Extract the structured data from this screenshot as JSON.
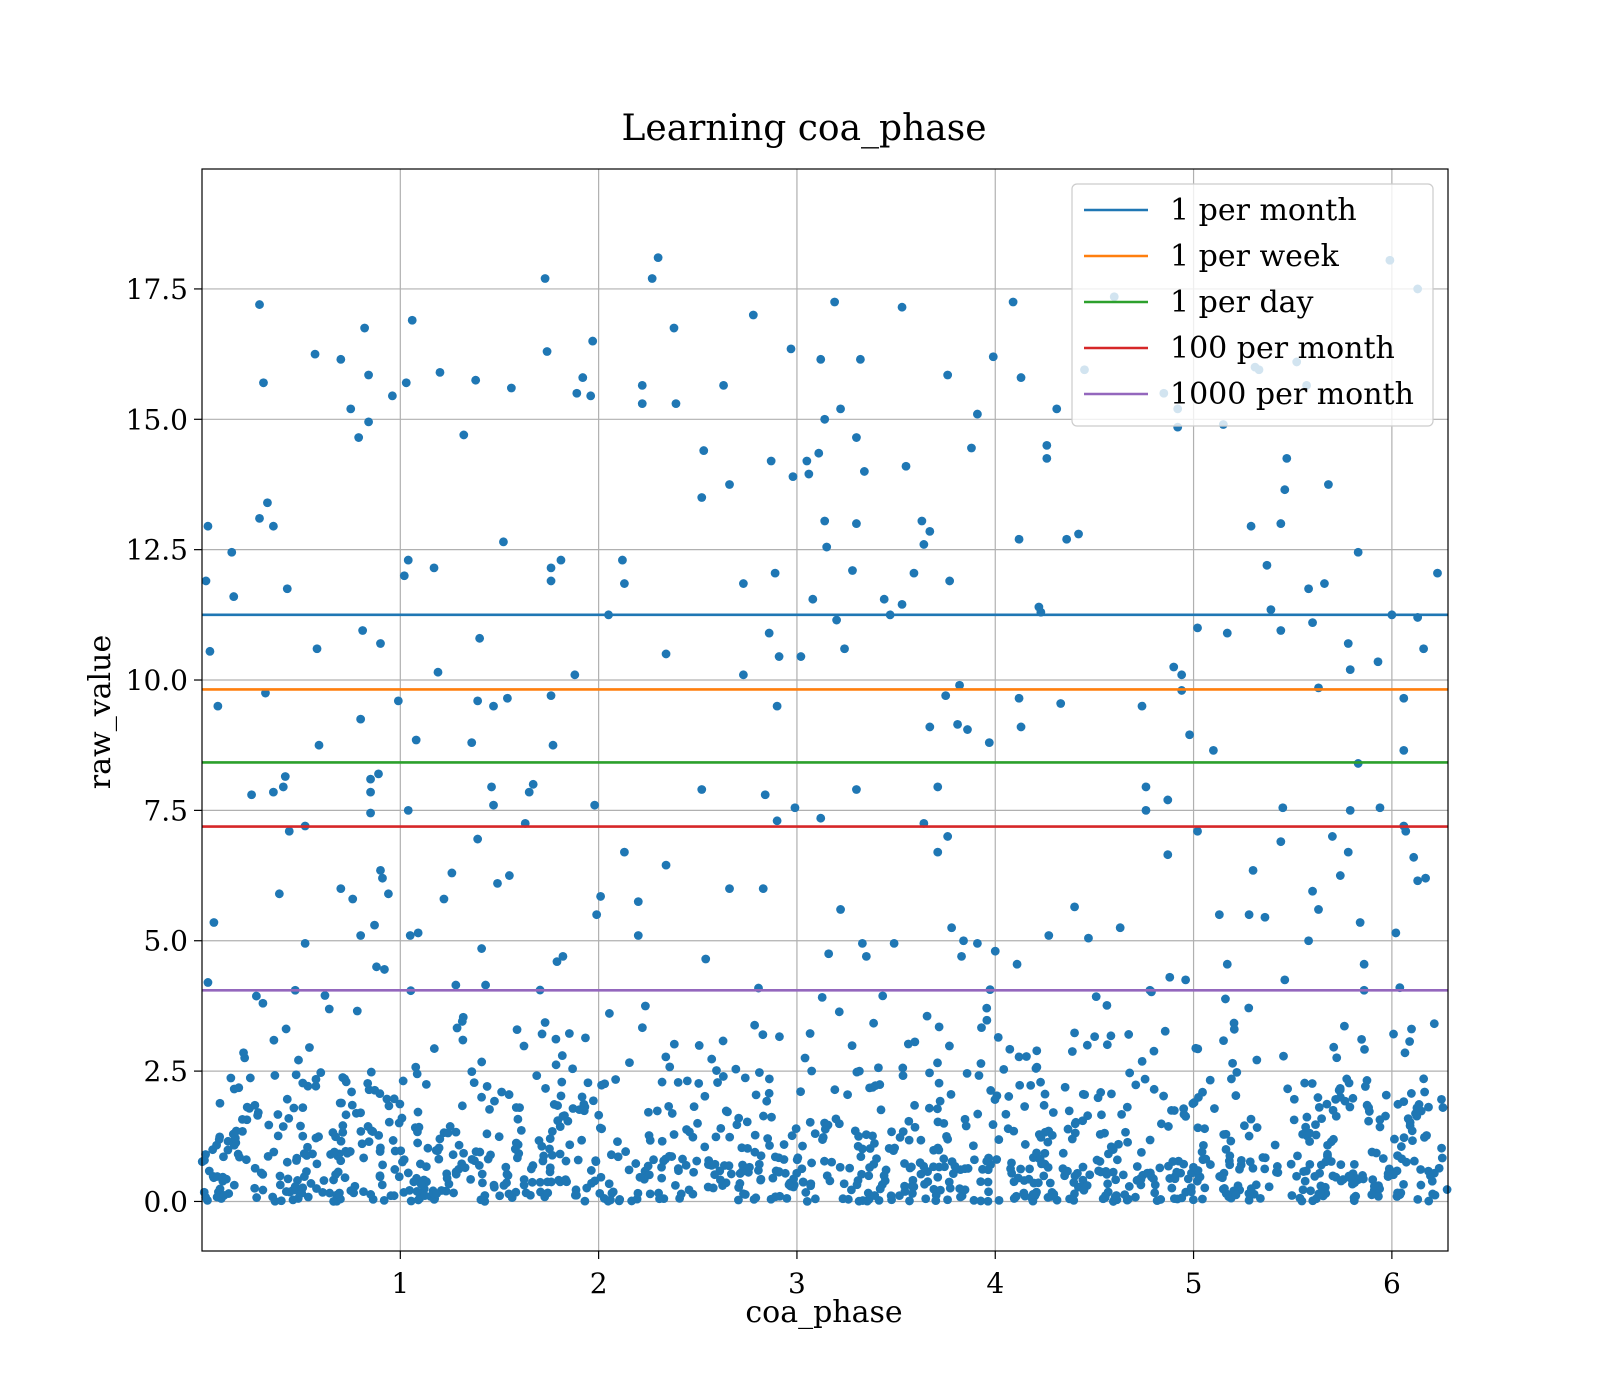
{
  "chart_data": {
    "type": "scatter",
    "title": "Learning coa_phase",
    "xlabel": "coa_phase",
    "ylabel": "raw_value",
    "xlim": [
      0,
      6.283
    ],
    "ylim": [
      -0.95,
      19.8
    ],
    "xticks": [
      1,
      2,
      3,
      4,
      5,
      6
    ],
    "yticks": [
      0.0,
      2.5,
      5.0,
      7.5,
      10.0,
      12.5,
      15.0,
      17.5
    ],
    "ytick_labels": [
      "0.0",
      "2.5",
      "5.0",
      "7.5",
      "10.0",
      "12.5",
      "15.0",
      "17.5"
    ],
    "grid": true,
    "legend_position": "top-right",
    "point_color": "#1f77b4",
    "hlines": [
      {
        "name": "1 per month",
        "y": 11.25,
        "color": "#1f77b4"
      },
      {
        "name": "1 per week",
        "y": 9.82,
        "color": "#ff7f0e"
      },
      {
        "name": "1 per day",
        "y": 8.42,
        "color": "#2ca02c"
      },
      {
        "name": "100 per month",
        "y": 7.19,
        "color": "#d62728"
      },
      {
        "name": "1000 per month",
        "y": 4.05,
        "color": "#9467bd"
      }
    ],
    "points": [
      [
        0.02,
        11.9
      ],
      [
        0.03,
        12.95
      ],
      [
        0.04,
        10.55
      ],
      [
        0.03,
        4.2
      ],
      [
        0.06,
        5.35
      ],
      [
        0.08,
        9.5
      ],
      [
        0.15,
        12.45
      ],
      [
        0.16,
        11.6
      ],
      [
        0.25,
        7.8
      ],
      [
        0.29,
        13.1
      ],
      [
        0.29,
        17.2
      ],
      [
        0.31,
        15.7
      ],
      [
        0.32,
        9.75
      ],
      [
        0.33,
        13.4
      ],
      [
        0.36,
        12.95
      ],
      [
        0.36,
        7.85
      ],
      [
        0.39,
        5.9
      ],
      [
        0.41,
        7.95
      ],
      [
        0.42,
        8.15
      ],
      [
        0.43,
        11.75
      ],
      [
        0.44,
        7.1
      ],
      [
        0.47,
        4.05
      ],
      [
        0.52,
        7.2
      ],
      [
        0.52,
        4.95
      ],
      [
        0.57,
        16.25
      ],
      [
        0.58,
        10.6
      ],
      [
        0.59,
        8.75
      ],
      [
        0.62,
        3.95
      ],
      [
        0.7,
        16.15
      ],
      [
        0.7,
        6.0
      ],
      [
        0.75,
        15.2
      ],
      [
        0.76,
        5.8
      ],
      [
        0.79,
        14.65
      ],
      [
        0.8,
        9.25
      ],
      [
        0.8,
        5.1
      ],
      [
        0.81,
        10.95
      ],
      [
        0.82,
        16.75
      ],
      [
        0.84,
        15.85
      ],
      [
        0.84,
        14.95
      ],
      [
        0.85,
        8.1
      ],
      [
        0.85,
        7.85
      ],
      [
        0.85,
        7.45
      ],
      [
        0.87,
        5.3
      ],
      [
        0.88,
        4.5
      ],
      [
        0.89,
        8.2
      ],
      [
        0.9,
        10.7
      ],
      [
        0.9,
        6.35
      ],
      [
        0.91,
        6.2
      ],
      [
        0.92,
        4.45
      ],
      [
        0.94,
        5.9
      ],
      [
        0.96,
        15.45
      ],
      [
        0.99,
        9.6
      ],
      [
        1.02,
        12.0
      ],
      [
        1.03,
        15.7
      ],
      [
        1.04,
        12.3
      ],
      [
        1.04,
        7.5
      ],
      [
        1.05,
        5.1
      ],
      [
        1.06,
        16.9
      ],
      [
        1.08,
        8.85
      ],
      [
        1.09,
        5.15
      ],
      [
        1.17,
        12.15
      ],
      [
        1.19,
        10.15
      ],
      [
        1.2,
        15.9
      ],
      [
        1.22,
        5.8
      ],
      [
        1.26,
        6.3
      ],
      [
        1.28,
        4.15
      ],
      [
        1.32,
        14.7
      ],
      [
        1.36,
        8.8
      ],
      [
        1.38,
        15.75
      ],
      [
        1.39,
        9.6
      ],
      [
        1.39,
        6.95
      ],
      [
        1.4,
        10.8
      ],
      [
        1.41,
        4.85
      ],
      [
        1.43,
        4.15
      ],
      [
        1.46,
        7.95
      ],
      [
        1.47,
        9.5
      ],
      [
        1.47,
        7.6
      ],
      [
        1.49,
        6.1
      ],
      [
        1.52,
        12.65
      ],
      [
        1.54,
        9.65
      ],
      [
        1.55,
        6.25
      ],
      [
        1.56,
        15.6
      ],
      [
        1.63,
        7.25
      ],
      [
        1.65,
        7.85
      ],
      [
        1.67,
        8.0
      ],
      [
        1.73,
        17.7
      ],
      [
        1.74,
        16.3
      ],
      [
        1.76,
        12.15
      ],
      [
        1.76,
        11.9
      ],
      [
        1.76,
        9.7
      ],
      [
        1.77,
        8.75
      ],
      [
        1.79,
        4.6
      ],
      [
        1.81,
        12.3
      ],
      [
        1.82,
        4.7
      ],
      [
        1.88,
        10.1
      ],
      [
        1.89,
        15.5
      ],
      [
        1.92,
        15.8
      ],
      [
        1.96,
        15.45
      ],
      [
        1.97,
        16.5
      ],
      [
        1.98,
        7.6
      ],
      [
        1.99,
        5.5
      ],
      [
        2.01,
        5.85
      ],
      [
        2.05,
        11.25
      ],
      [
        2.12,
        12.3
      ],
      [
        2.13,
        11.85
      ],
      [
        2.13,
        6.7
      ],
      [
        2.2,
        5.75
      ],
      [
        2.2,
        5.1
      ],
      [
        2.22,
        15.65
      ],
      [
        2.22,
        15.3
      ],
      [
        2.27,
        17.7
      ],
      [
        2.3,
        18.1
      ],
      [
        2.34,
        6.45
      ],
      [
        2.34,
        10.5
      ],
      [
        2.38,
        16.75
      ],
      [
        2.39,
        15.3
      ],
      [
        2.52,
        13.5
      ],
      [
        2.53,
        14.4
      ],
      [
        2.52,
        7.9
      ],
      [
        2.54,
        4.65
      ],
      [
        2.63,
        15.65
      ],
      [
        2.66,
        13.75
      ],
      [
        2.66,
        6.0
      ],
      [
        2.73,
        10.1
      ],
      [
        2.73,
        11.85
      ],
      [
        2.78,
        17.0
      ],
      [
        2.83,
        6.0
      ],
      [
        2.84,
        7.8
      ],
      [
        2.86,
        10.9
      ],
      [
        2.87,
        14.2
      ],
      [
        2.89,
        12.05
      ],
      [
        2.9,
        9.5
      ],
      [
        2.9,
        7.3
      ],
      [
        2.91,
        10.45
      ],
      [
        2.97,
        16.35
      ],
      [
        2.98,
        13.9
      ],
      [
        2.99,
        7.55
      ],
      [
        3.02,
        10.45
      ],
      [
        3.05,
        14.2
      ],
      [
        3.06,
        13.95
      ],
      [
        3.08,
        11.55
      ],
      [
        3.11,
        14.35
      ],
      [
        3.12,
        16.15
      ],
      [
        3.12,
        7.35
      ],
      [
        3.14,
        13.05
      ],
      [
        3.14,
        15.0
      ],
      [
        3.15,
        12.55
      ],
      [
        3.16,
        4.75
      ],
      [
        3.19,
        17.25
      ],
      [
        3.2,
        11.15
      ],
      [
        3.22,
        15.2
      ],
      [
        3.24,
        10.6
      ],
      [
        3.22,
        5.6
      ],
      [
        3.28,
        12.1
      ],
      [
        3.3,
        14.65
      ],
      [
        3.3,
        13.0
      ],
      [
        3.3,
        7.9
      ],
      [
        3.32,
        16.15
      ],
      [
        3.34,
        14.0
      ],
      [
        3.33,
        4.95
      ],
      [
        3.35,
        4.7
      ],
      [
        3.44,
        11.55
      ],
      [
        3.47,
        11.25
      ],
      [
        3.49,
        4.95
      ],
      [
        3.53,
        11.45
      ],
      [
        3.53,
        17.15
      ],
      [
        3.55,
        14.1
      ],
      [
        3.59,
        12.05
      ],
      [
        3.63,
        13.05
      ],
      [
        3.64,
        12.6
      ],
      [
        3.64,
        7.25
      ],
      [
        3.67,
        12.85
      ],
      [
        3.67,
        9.1
      ],
      [
        3.71,
        7.95
      ],
      [
        3.71,
        6.7
      ],
      [
        3.75,
        9.7
      ],
      [
        3.76,
        15.85
      ],
      [
        3.77,
        11.9
      ],
      [
        3.76,
        7.0
      ],
      [
        3.78,
        5.25
      ],
      [
        3.81,
        9.15
      ],
      [
        3.82,
        9.9
      ],
      [
        3.83,
        4.7
      ],
      [
        3.84,
        5.0
      ],
      [
        3.86,
        9.05
      ],
      [
        3.88,
        14.45
      ],
      [
        3.91,
        15.1
      ],
      [
        3.91,
        4.95
      ],
      [
        3.97,
        8.8
      ],
      [
        3.99,
        16.2
      ],
      [
        4.0,
        4.8
      ],
      [
        4.09,
        17.25
      ],
      [
        4.11,
        4.55
      ],
      [
        4.12,
        12.7
      ],
      [
        4.13,
        15.8
      ],
      [
        4.12,
        9.65
      ],
      [
        4.13,
        9.1
      ],
      [
        4.22,
        11.4
      ],
      [
        4.23,
        11.3
      ],
      [
        4.26,
        14.5
      ],
      [
        4.26,
        14.25
      ],
      [
        4.27,
        5.1
      ],
      [
        4.31,
        15.2
      ],
      [
        4.33,
        9.55
      ],
      [
        4.36,
        12.7
      ],
      [
        4.42,
        12.8
      ],
      [
        4.4,
        5.65
      ],
      [
        4.45,
        15.95
      ],
      [
        4.47,
        5.05
      ],
      [
        4.6,
        17.35
      ],
      [
        4.63,
        5.25
      ],
      [
        4.74,
        9.5
      ],
      [
        4.76,
        7.95
      ],
      [
        4.76,
        7.5
      ],
      [
        4.78,
        4.05
      ],
      [
        4.85,
        15.5
      ],
      [
        4.87,
        7.7
      ],
      [
        4.87,
        6.65
      ],
      [
        4.88,
        4.3
      ],
      [
        4.9,
        10.25
      ],
      [
        4.92,
        15.2
      ],
      [
        4.92,
        14.85
      ],
      [
        4.94,
        10.1
      ],
      [
        4.94,
        9.8
      ],
      [
        4.96,
        4.25
      ],
      [
        4.98,
        8.95
      ],
      [
        5.02,
        11.0
      ],
      [
        5.02,
        7.1
      ],
      [
        5.1,
        8.65
      ],
      [
        5.13,
        5.5
      ],
      [
        5.15,
        14.9
      ],
      [
        5.17,
        10.9
      ],
      [
        5.17,
        4.55
      ],
      [
        5.28,
        5.5
      ],
      [
        5.29,
        12.95
      ],
      [
        5.3,
        6.35
      ],
      [
        5.31,
        16.0
      ],
      [
        5.33,
        15.95
      ],
      [
        5.36,
        5.45
      ],
      [
        5.37,
        12.2
      ],
      [
        5.39,
        11.35
      ],
      [
        5.44,
        13.0
      ],
      [
        5.44,
        10.95
      ],
      [
        5.44,
        6.9
      ],
      [
        5.45,
        7.55
      ],
      [
        5.46,
        13.65
      ],
      [
        5.47,
        14.25
      ],
      [
        5.46,
        4.25
      ],
      [
        5.52,
        16.1
      ],
      [
        5.57,
        15.65
      ],
      [
        5.58,
        11.75
      ],
      [
        5.58,
        5.0
      ],
      [
        5.6,
        11.1
      ],
      [
        5.6,
        5.95
      ],
      [
        5.63,
        9.85
      ],
      [
        5.63,
        5.6
      ],
      [
        5.66,
        11.85
      ],
      [
        5.68,
        13.75
      ],
      [
        5.7,
        7.0
      ],
      [
        5.74,
        6.25
      ],
      [
        5.78,
        10.7
      ],
      [
        5.79,
        10.2
      ],
      [
        5.79,
        7.5
      ],
      [
        5.78,
        6.7
      ],
      [
        5.83,
        12.45
      ],
      [
        5.83,
        8.4
      ],
      [
        5.84,
        5.35
      ],
      [
        5.86,
        4.55
      ],
      [
        5.86,
        4.05
      ],
      [
        5.93,
        10.35
      ],
      [
        5.94,
        7.55
      ],
      [
        5.99,
        18.05
      ],
      [
        6.0,
        11.25
      ],
      [
        6.02,
        5.15
      ],
      [
        6.04,
        4.1
      ],
      [
        6.06,
        9.65
      ],
      [
        6.06,
        8.65
      ],
      [
        6.06,
        7.2
      ],
      [
        6.07,
        7.1
      ],
      [
        6.11,
        6.6
      ],
      [
        6.13,
        6.15
      ],
      [
        6.13,
        11.2
      ],
      [
        6.13,
        17.5
      ],
      [
        6.16,
        10.6
      ],
      [
        6.17,
        6.2
      ],
      [
        6.23,
        12.05
      ]
    ]
  }
}
